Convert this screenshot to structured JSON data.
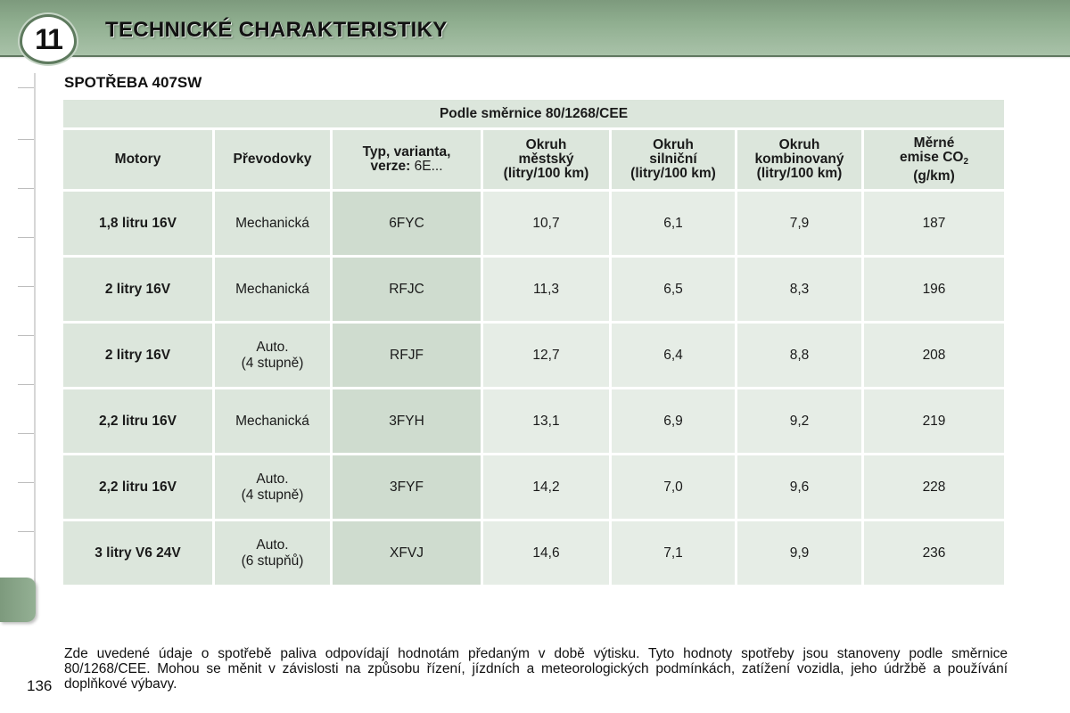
{
  "header": {
    "chapter_number": "11",
    "title": "TECHNICKÉ CHARAKTERISTIKY"
  },
  "section": {
    "title": "SPOTŘEBA 407SW"
  },
  "table": {
    "directive": "Podle směrnice 80/1268/CEE",
    "columns": {
      "motor": "Motory",
      "gearbox": "Převodovky",
      "type_line1": "Typ, varianta,",
      "type_line2_bold": "verze:",
      "type_line2_normal": " 6E...",
      "urban_l1": "Okruh",
      "urban_l2": "městský",
      "urban_l3": "(litry/100 km)",
      "extra_l1": "Okruh",
      "extra_l2": "silniční",
      "extra_l3": "(litry/100 km)",
      "comb_l1": "Okruh",
      "comb_l2": "kombinovaný",
      "comb_l3": "(litry/100 km)",
      "co2_l1": "Měrné",
      "co2_l2": "emise CO",
      "co2_sub": "2",
      "co2_l3": "(g/km)"
    },
    "rows": [
      {
        "motor": "1,8 litru 16V",
        "gearbox_l1": "Mechanická",
        "gearbox_l2": "",
        "type": "6FYC",
        "urban": "10,7",
        "extra": "6,1",
        "comb": "7,9",
        "co2": "187"
      },
      {
        "motor": "2 litry 16V",
        "gearbox_l1": "Mechanická",
        "gearbox_l2": "",
        "type": "RFJC",
        "urban": "11,3",
        "extra": "6,5",
        "comb": "8,3",
        "co2": "196"
      },
      {
        "motor": "2 litry 16V",
        "gearbox_l1": "Auto.",
        "gearbox_l2": "(4 stupně)",
        "type": "RFJF",
        "urban": "12,7",
        "extra": "6,4",
        "comb": "8,8",
        "co2": "208"
      },
      {
        "motor": "2,2 litru 16V",
        "gearbox_l1": "Mechanická",
        "gearbox_l2": "",
        "type": "3FYH",
        "urban": "13,1",
        "extra": "6,9",
        "comb": "9,2",
        "co2": "219"
      },
      {
        "motor": "2,2 litru 16V",
        "gearbox_l1": "Auto.",
        "gearbox_l2": "(4 stupně)",
        "type": "3FYF",
        "urban": "14,2",
        "extra": "7,0",
        "comb": "9,6",
        "co2": "228"
      },
      {
        "motor": "3 litry V6 24V",
        "gearbox_l1": "Auto.",
        "gearbox_l2": "(6 stupňů)",
        "type": "XFVJ",
        "urban": "14,6",
        "extra": "7,1",
        "comb": "9,9",
        "co2": "236"
      }
    ]
  },
  "footnote": "Zde uvedené údaje o spotřebě paliva odpovídají hodnotám předaným v době výtisku. Tyto hodnoty spotřeby jsou stanoveny podle směrnice 80/1268/CEE. Mohou se měnit v závislosti na způsobu řízení, jízdních a meteorologických podmínkách, zatížení vozidla, jeho údržbě a používání doplňkové výbavy.",
  "page_number": "136",
  "colors": {
    "header_green": "#8fae8f",
    "cell_green": "#dce6dc"
  }
}
